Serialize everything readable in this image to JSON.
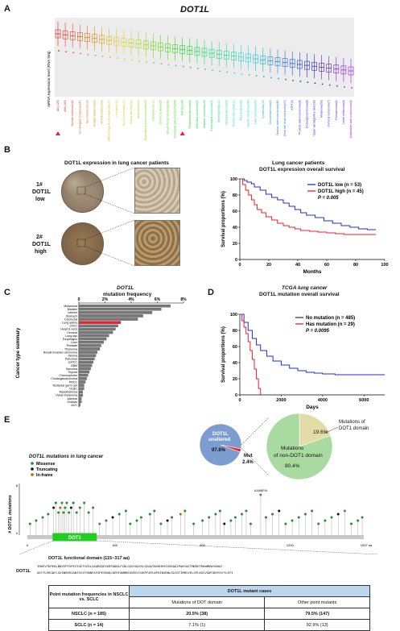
{
  "panels": {
    "a": "A",
    "b": "B",
    "c": "C",
    "d": "D",
    "e": "E"
  },
  "panelA": {
    "gene": "DOT1L",
    "ylabel": "mRNA expression level (RNA Seq)",
    "cancers": [
      "ALL(125)",
      "AML(183)",
      "Multiple myeloma(38)",
      "Non-Hodgkin lymphoma(41)",
      "Neuroblastoma(16)",
      "Hodgkin lymphoma(3)",
      "Medulloblastoma(8)",
      "Diffuse large B-cell lymphoma(17)",
      "Leukemia(12)",
      "Burkitt lymphoma(11)",
      "Ewing sarcoma(12)",
      "Astrocytoma(4)",
      "Endometrial adenocarcinoma(28)",
      "Glioblastoma(10)",
      "Chronic leukemia(5)",
      "Breast ductal carcinoma(39)",
      "Colorectal adenocarcinoma(59)",
      "NSCLC(129)",
      "Rhabdomyosarcoma(6)",
      "Medullary carcinoma(2)",
      "Bladder carcinoma(26)",
      "Esophageal carcinoma(3)",
      "Osteosarcoma(10)",
      "Synovial sarcoma(5)",
      "Thyroid carcinoma(11)",
      "Mesothelioma(8)",
      "Gastric carcinoma(36)",
      "Liver carcinoma(20)",
      "Lymphoma(13)",
      "Chondrosarcoma(6)",
      "Ovarian adenocarcinoma(46)",
      "Clear cell renal carcinoma(27)",
      "ATRT(3)",
      "Prostate adenocarcinoma(8)",
      "Cholangiocarcinoma(8)",
      "Upper aerodigestive SCC(33)",
      "Melanoma(53)",
      "Cervical carcinoma(7)",
      "Fibrosarcoma(6)",
      "Uveal melanoma(8)",
      "Gallbladder adenocarcinoma(8)"
    ]
  },
  "panelB": {
    "title": "DOT1L expression in lung cancer patients",
    "low_label_1": "1#",
    "low_label_2": "DOT1L",
    "low_label_3": "low",
    "high_label_1": "2#",
    "high_label_2": "DOT1L",
    "high_label_3": "high",
    "km_title_1": "Lung cancer patients",
    "km_title_2": "DOT1L expression overall survival",
    "km_ylabel": "Survival proportions (%)",
    "km_xlabel": "Months",
    "legend_low": "DOT1L low (n = 53)",
    "legend_high": "DOT1L high (n = 45)",
    "pvalue": "P = 0.005"
  },
  "panelC": {
    "title_1": "DOT1L",
    "title_2": "mutation frequency",
    "ylabel": "Cancer type summary"
  },
  "panelD": {
    "title_1": "TCGA lung cancer",
    "title_2": "DOT1L mutation overall survival",
    "ylabel": "Survival proportions (%)",
    "xlabel": "Days",
    "legend_no": "No mutation (n = 485)",
    "legend_has": "Has mutation (n = 29)",
    "pvalue": "P = 0.0095"
  },
  "panelE": {
    "lolli_title": "DOT1L mutations in lung cancer",
    "legend_missense": "Missense",
    "legend_truncating": "Truncating",
    "legend_inframe": "In-frame",
    "ylabel": "# DOT1L mutations",
    "domain": "DOT1",
    "aa": "1537 aa",
    "top_mut": "A1066P/A",
    "domain_title": "DOT1L functional domain  (115~317 aa)",
    "gene_label": "DOT1L",
    "seq_1": "YHHSVTDPEKLNNYEPFSPEVYGETSFDLVAQMIDEIKMTDDDLFVDLGSGVGQVVLQVAATNCKHHYGVEKADIPAKYAETMDREFRKWMKWYGKKH",
    "seq_2": "AEYTLERGDFLSEEWRERIANTSVIFVNNFAFGPEVDHQLKERFANMKEGGRIVSSKPFAPLNFRINSRNLSDIGTIMRVVELSPLKGSVSWTGKPVSYYLHTI",
    "pie_left_1": "DOT1L",
    "pie_left_2": "unaltered",
    "pie_left_pct": "97.6%",
    "pie_mut": "Mut",
    "pie_mut_pct": "2.4%",
    "pie_right_a": "Mutations of",
    "pie_right_b": "DOT1 domain",
    "pie_right_pct_small": "19.6%",
    "pie_right_big_1": "Mutations",
    "pie_right_big_2": "of non-DOT1 domain",
    "pie_right_big_pct": "80.4%",
    "table": {
      "h_left": "Point mutation frequencies in NSCLC vs. SCLC",
      "h_right": "DOT1L mutant cases",
      "c1": "Mutations of DOT domain",
      "c2": "Other point mutants",
      "r1_label": "NSCLC (n = 185)",
      "r1_c1": "20.5% (38)",
      "r1_c2": "79.5% (147)",
      "r2_label": "SCLC (n = 14)",
      "r2_c1": "7.1% (1)",
      "r2_c2": "92.9% (13)"
    }
  },
  "chart_data": [
    {
      "type": "bar",
      "title": "DOT1L mutation frequency",
      "ylabel": "Cancer type summary",
      "xlim": [
        0,
        8
      ],
      "xticks": [
        "0",
        "2%",
        "4%",
        "6%",
        "8%"
      ],
      "categories": [
        "Melanoma",
        "Bladder",
        "Uterine",
        "Stomach",
        "Colorectal",
        "Lung adeno",
        "cSCC",
        "Head & neck",
        "Cervical",
        "Lung squ",
        "Esophagus",
        "Liver",
        "Prostate",
        "Thymoma",
        "Breast invasive carcinoma",
        "Glioma",
        "Pancreas",
        "ccRCC",
        "GBM",
        "Sarcoma",
        "Thyroid",
        "Chromophobe",
        "Cholangiocarcinoma",
        "PRCC",
        "Testicular germ cell",
        "DLBC",
        "Mesothelioma",
        "Uveal melanoma",
        "Adrenal",
        "Ovarian",
        "ACC"
      ],
      "values": [
        7.0,
        6.3,
        5.6,
        4.9,
        4.5,
        3.2,
        3.0,
        2.8,
        2.6,
        2.3,
        2.1,
        1.9,
        1.7,
        1.6,
        1.4,
        1.3,
        1.2,
        1.1,
        1.0,
        0.9,
        0.8,
        0.7,
        0.6,
        0.5,
        0.4,
        0.4,
        0.3,
        0.3,
        0.2,
        0.2,
        0.1
      ],
      "highlight": "Lung adeno",
      "bar_color": "#777777",
      "highlight_color": "#e8212b"
    },
    {
      "type": "line",
      "title": "DOT1L expression overall survival",
      "xlabel": "Months",
      "ylabel": "Survival proportions (%)",
      "xlim": [
        0,
        100
      ],
      "ylim": [
        0,
        100
      ],
      "xticks": [
        0,
        20,
        40,
        60,
        80,
        100
      ],
      "yticks": [
        0,
        20,
        40,
        60,
        80,
        100
      ],
      "series": [
        {
          "name": "DOT1L low (n = 53)",
          "color": "#1f2fd1",
          "x": [
            0,
            3,
            5,
            8,
            10,
            14,
            18,
            22,
            26,
            30,
            34,
            38,
            42,
            46,
            52,
            58,
            64,
            70,
            76,
            82,
            88,
            94
          ],
          "y": [
            100,
            98,
            96,
            94,
            90,
            86,
            81,
            77,
            74,
            70,
            66,
            62,
            58,
            55,
            52,
            48,
            45,
            42,
            40,
            38,
            37,
            37
          ]
        },
        {
          "name": "DOT1L high (n = 45)",
          "color": "#e8212b",
          "x": [
            0,
            2,
            4,
            6,
            8,
            10,
            12,
            15,
            18,
            22,
            26,
            30,
            34,
            38,
            42,
            48,
            54,
            60,
            66,
            72,
            80,
            88,
            94
          ],
          "y": [
            100,
            93,
            86,
            80,
            74,
            68,
            62,
            58,
            53,
            49,
            45,
            42,
            40,
            38,
            36,
            35,
            34,
            33,
            32,
            31,
            31,
            31,
            31
          ]
        }
      ]
    },
    {
      "type": "line",
      "title": "DOT1L mutation overall survival",
      "xlabel": "Days",
      "ylabel": "Survival proportions (%)",
      "xlim": [
        0,
        7000
      ],
      "ylim": [
        0,
        100
      ],
      "xticks": [
        0,
        2000,
        4000,
        6000
      ],
      "yticks": [
        0,
        20,
        40,
        60,
        80,
        100
      ],
      "series": [
        {
          "name": "No mutation (n = 485)",
          "color": "#1f2fd1",
          "x": [
            0,
            200,
            400,
            600,
            800,
            1000,
            1300,
            1600,
            2000,
            2400,
            2800,
            3200,
            3600,
            4000,
            4600,
            5200,
            6000,
            7000
          ],
          "y": [
            100,
            90,
            80,
            70,
            62,
            55,
            48,
            42,
            37,
            33,
            30,
            28,
            27,
            26,
            25,
            25,
            25,
            25
          ]
        },
        {
          "name": "Has mutation (n = 29)",
          "color": "#e8212b",
          "x": [
            0,
            100,
            200,
            300,
            400,
            500,
            600,
            700,
            800,
            900,
            1000
          ],
          "y": [
            100,
            92,
            84,
            76,
            66,
            55,
            44,
            32,
            20,
            8,
            0
          ]
        }
      ]
    },
    {
      "type": "pie",
      "labels": [
        "DOT1L unaltered",
        "Mut"
      ],
      "values": [
        97.6,
        2.4
      ],
      "colors": [
        "#7d9ccf",
        "#e8212b"
      ]
    },
    {
      "type": "pie",
      "labels": [
        "Mutations of DOT1 domain",
        "Mutations of non-DOT1 domain"
      ],
      "values": [
        19.6,
        80.4
      ],
      "colors": [
        "#e4dca6",
        "#a9dba1"
      ]
    }
  ]
}
